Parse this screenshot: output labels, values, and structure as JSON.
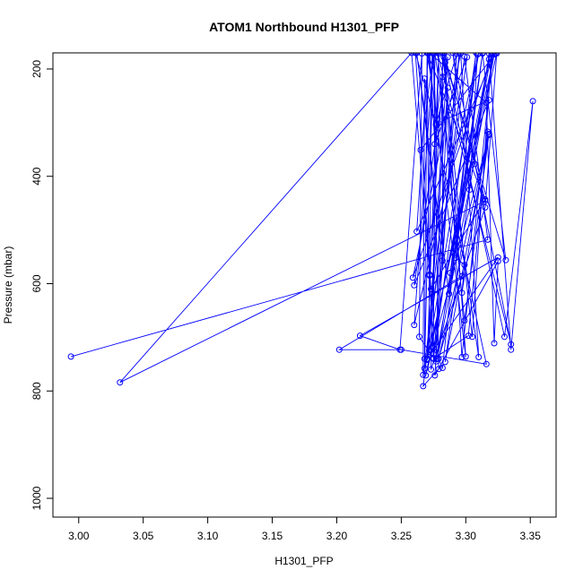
{
  "chart_data": {
    "type": "line",
    "title": "ATOM1 Northbound H1301_PFP",
    "xlabel": "H1301_PFP",
    "ylabel": "Pressure (mbar)",
    "xlim": [
      2.98,
      3.37
    ],
    "ylim": [
      1035,
      170
    ],
    "y_inverted": true,
    "grid": false,
    "legend": "none",
    "x_ticks": [
      "3.00",
      "3.05",
      "3.10",
      "3.15",
      "3.20",
      "3.25",
      "3.30",
      "3.35"
    ],
    "y_ticks": [
      "200",
      "400",
      "600",
      "800",
      "1000"
    ],
    "series": [
      {
        "color": "#0000ff",
        "marker": "open-circle",
        "points": [
          [
            2.994,
            736
          ],
          [
            3.317,
            518
          ],
          [
            3.299,
            177
          ],
          [
            3.267,
            791
          ],
          [
            3.279,
            759
          ],
          [
            3.275,
            171
          ],
          [
            3.277,
            305
          ],
          [
            3.283,
            178
          ],
          [
            3.331,
            556
          ],
          [
            3.313,
            170
          ],
          [
            3.287,
            619
          ],
          [
            3.262,
            170
          ],
          [
            3.282,
            557
          ],
          [
            3.282,
            170
          ],
          [
            3.305,
            699
          ],
          [
            3.32,
            170
          ],
          [
            3.288,
            580
          ],
          [
            3.309,
            173
          ],
          [
            3.303,
            425
          ],
          [
            3.29,
            170
          ],
          [
            3.335,
            713
          ],
          [
            3.278,
            169
          ],
          [
            3.299,
            669
          ],
          [
            3.318,
            321
          ],
          [
            3.284,
            746
          ],
          [
            3.318,
            171
          ],
          [
            3.335,
            723
          ],
          [
            3.352,
            260
          ],
          [
            3.33,
            699
          ],
          [
            3.284,
            188
          ],
          [
            3.3,
            736
          ],
          [
            3.271,
            171
          ],
          [
            3.262,
            503
          ],
          [
            3.323,
            171
          ],
          [
            3.265,
            351
          ],
          [
            3.275,
            171
          ],
          [
            3.26,
            677
          ],
          [
            3.31,
            171
          ],
          [
            3.27,
            740
          ],
          [
            3.286,
            178
          ],
          [
            3.26,
            603
          ],
          [
            3.318,
            258
          ],
          [
            3.277,
            302
          ],
          [
            3.261,
            170
          ],
          [
            3.273,
            610
          ],
          [
            3.315,
            443
          ],
          [
            3.307,
            377
          ],
          [
            3.283,
            170
          ],
          [
            3.297,
            737
          ],
          [
            3.321,
            171
          ],
          [
            3.259,
            589
          ],
          [
            3.296,
            171
          ],
          [
            3.31,
            737
          ],
          [
            3.276,
            170
          ],
          [
            3.275,
            720
          ],
          [
            3.282,
            757
          ],
          [
            3.308,
            170
          ],
          [
            3.275,
            739
          ],
          [
            3.295,
            170
          ],
          [
            3.268,
            758
          ],
          [
            3.274,
            170
          ],
          [
            3.272,
            583
          ],
          [
            3.258,
            170
          ],
          [
            3.032,
            784
          ],
          [
            3.315,
            446
          ],
          [
            3.27,
            169
          ],
          [
            3.272,
            724
          ],
          [
            3.322,
            173
          ],
          [
            3.278,
            740
          ],
          [
            3.313,
            171
          ],
          [
            3.292,
            552
          ],
          [
            3.299,
            565
          ],
          [
            3.297,
            617
          ],
          [
            3.317,
            317
          ],
          [
            3.302,
            697
          ],
          [
            3.275,
            740
          ],
          [
            3.272,
            585
          ],
          [
            3.282,
            215
          ],
          [
            3.277,
            745
          ],
          [
            3.264,
            699
          ],
          [
            3.266,
            171
          ],
          [
            3.249,
            723
          ],
          [
            3.218,
            697
          ],
          [
            3.325,
            551
          ],
          [
            3.27,
            741
          ],
          [
            3.279,
            171
          ],
          [
            3.273,
            760
          ],
          [
            3.315,
            458
          ],
          [
            3.324,
            171
          ],
          [
            3.27,
            742
          ],
          [
            3.286,
            235
          ],
          [
            3.277,
            741
          ],
          [
            3.318,
            182
          ],
          [
            3.269,
            771
          ],
          [
            3.318,
            323
          ],
          [
            3.279,
            740
          ],
          [
            3.297,
            586
          ],
          [
            3.202,
            723
          ],
          [
            3.25,
            723
          ],
          [
            3.316,
            750
          ],
          [
            3.268,
            218
          ],
          [
            3.267,
            770
          ],
          [
            3.301,
            178
          ],
          [
            3.276,
            340
          ],
          [
            3.272,
            170
          ],
          [
            3.316,
            263
          ],
          [
            3.322,
            711
          ],
          [
            3.325,
            558
          ],
          [
            3.276,
            771
          ],
          [
            3.293,
            172
          ],
          [
            3.278,
            293
          ],
          [
            3.27,
            170
          ],
          [
            3.268,
            740
          ]
        ]
      }
    ]
  }
}
